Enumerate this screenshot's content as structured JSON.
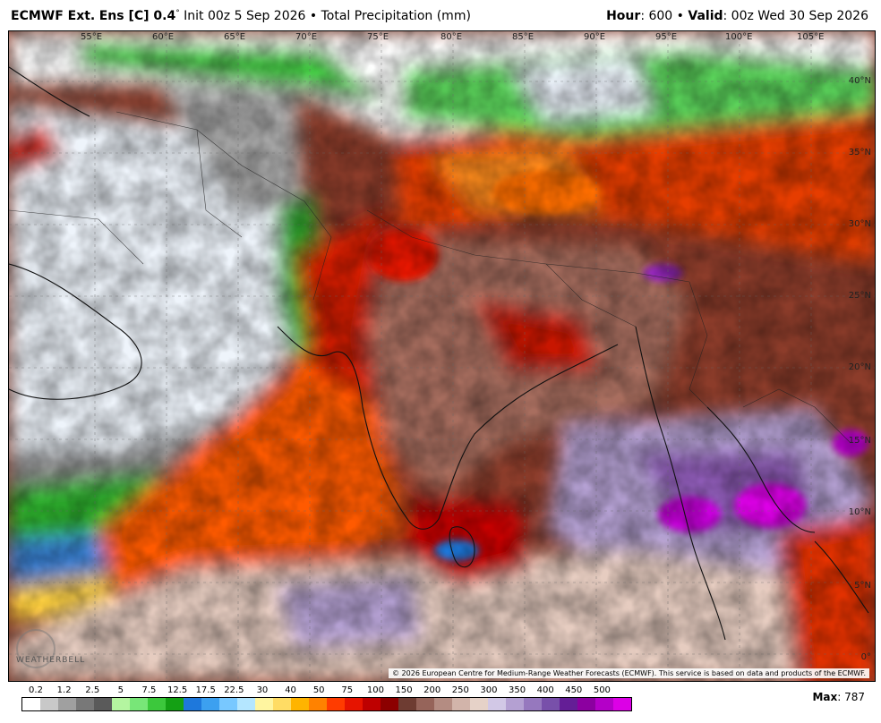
{
  "header": {
    "model": "ECMWF Ext.",
    "ens": "Ens [C] 0.4",
    "deg": "°",
    "init": "Init 00z 5 Sep 2026",
    "bullet": "•",
    "product": "Total Precipitation (mm)",
    "hour_label": "Hour",
    "hour_value": ": 600",
    "valid_label": "Valid",
    "valid_value": ": 00z Wed 30 Sep 2026"
  },
  "map": {
    "lon_labels": [
      "55°E",
      "60°E",
      "65°E",
      "70°E",
      "75°E",
      "80°E",
      "85°E",
      "90°E",
      "95°E",
      "100°E",
      "105°E"
    ],
    "lat_labels": [
      "40°N",
      "35°N",
      "30°N",
      "25°N",
      "20°N",
      "15°N",
      "10°N",
      "5°N",
      "0°"
    ],
    "copyright": "© 2026 European Centre for Medium-Range Weather Forecasts (ECMWF). This service is based on data and products of the ECMWF.",
    "logo_text": "WEATHERBELL"
  },
  "legend": {
    "ticks": [
      "0.2",
      "1.2",
      "2.5",
      "5",
      "7.5",
      "12.5",
      "17.5",
      "22.5",
      "30",
      "40",
      "50",
      "75",
      "100",
      "150",
      "200",
      "250",
      "300",
      "350",
      "400",
      "450",
      "500"
    ],
    "colors": [
      "#ffffff",
      "#c8c8c8",
      "#a0a0a0",
      "#787878",
      "#5a5a5a",
      "#b4f5a0",
      "#78e678",
      "#3cc83c",
      "#14a014",
      "#1e78dc",
      "#3ca0f0",
      "#78c8ff",
      "#b4e6ff",
      "#fff5a0",
      "#ffdc64",
      "#ffb400",
      "#ff8200",
      "#ff3c00",
      "#e61400",
      "#be0000",
      "#8c0000",
      "#6e3c32",
      "#96645a",
      "#b48c82",
      "#d2b4aa",
      "#e6d2c8",
      "#d2c8e6",
      "#b4a0d2",
      "#9678be",
      "#7850aa",
      "#641e96",
      "#8c00a0",
      "#b400c8",
      "#dc00e6"
    ],
    "max_label": "Max",
    "max_value": ": 787"
  }
}
